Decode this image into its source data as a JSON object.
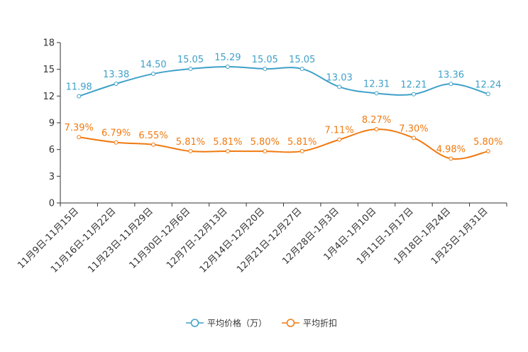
{
  "chart_data": {
    "type": "line",
    "title": "",
    "xlabel": "",
    "ylabel": "",
    "ylim": [
      0,
      18
    ],
    "yticks": [
      0,
      3,
      6,
      9,
      12,
      15,
      18
    ],
    "grid": false,
    "legend_position": "bottom",
    "categories": [
      "11月9日-11月15日",
      "11月16日-11月22日",
      "11月23日-11月29日",
      "11月30日-12月6日",
      "12月7日-12月13日",
      "12月14日-12月20日",
      "12月21日-12月27日",
      "12月28日-1月3日",
      "1月4日-1月10日",
      "1月11日-1月17日",
      "1月18日-1月24日",
      "1月25日-1月31日"
    ],
    "series": [
      {
        "name": "平均价格（万）",
        "color": "#3fa0c8",
        "values": [
          11.98,
          13.38,
          14.5,
          15.05,
          15.29,
          15.05,
          15.05,
          13.03,
          12.31,
          12.21,
          13.36,
          12.24
        ],
        "labels": [
          "11.98",
          "13.38",
          "14.50",
          "15.05",
          "15.29",
          "15.05",
          "15.05",
          "13.03",
          "12.31",
          "12.21",
          "13.36",
          "12.24"
        ]
      },
      {
        "name": "平均折扣",
        "color": "#f07a10",
        "values": [
          7.39,
          6.79,
          6.55,
          5.81,
          5.81,
          5.8,
          5.81,
          7.11,
          8.27,
          7.3,
          4.98,
          5.8
        ],
        "labels": [
          "7.39%",
          "6.79%",
          "6.55%",
          "5.81%",
          "5.81%",
          "5.80%",
          "5.81%",
          "7.11%",
          "8.27%",
          "7.30%",
          "4.98%",
          "5.80%"
        ]
      }
    ]
  }
}
